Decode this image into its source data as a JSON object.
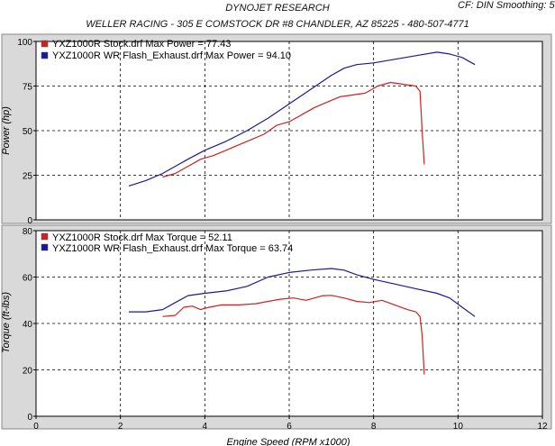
{
  "header": {
    "title": "DYNOJET RESEARCH",
    "subtitle": "WELLER RACING - 305 E COMSTOCK DR #8 CHANDLER, AZ 85225 - 480-507-4771",
    "settings": "CF: DIN  Smoothing: 5"
  },
  "colors": {
    "stock": "#cc2222",
    "flash": "#1a1a99",
    "panel": "#d9d9d9",
    "plot": "#ffffff"
  },
  "chart_data": [
    {
      "type": "line",
      "ylabel": "Power (hp)",
      "xlim": [
        0,
        12
      ],
      "ylim": [
        0,
        100
      ],
      "yticks": [
        0,
        25,
        50,
        75,
        100
      ],
      "xticks": [
        0,
        2,
        4,
        6,
        8,
        10,
        12
      ],
      "grid": true,
      "legend": "top-left",
      "series": [
        {
          "name": "YXZ1000R Stock.drf Max Power = 77.43",
          "color": "#cc2222",
          "points": [
            [
              3.0,
              24
            ],
            [
              3.3,
              26
            ],
            [
              3.6,
              30
            ],
            [
              3.9,
              34
            ],
            [
              4.2,
              36
            ],
            [
              4.5,
              39
            ],
            [
              4.8,
              42
            ],
            [
              5.1,
              45
            ],
            [
              5.4,
              48
            ],
            [
              5.7,
              53
            ],
            [
              6.0,
              55
            ],
            [
              6.3,
              59
            ],
            [
              6.6,
              63
            ],
            [
              6.9,
              66
            ],
            [
              7.2,
              69
            ],
            [
              7.5,
              70
            ],
            [
              7.8,
              71
            ],
            [
              8.1,
              75
            ],
            [
              8.4,
              77
            ],
            [
              8.7,
              76
            ],
            [
              9.0,
              75
            ],
            [
              9.1,
              72
            ],
            [
              9.15,
              50
            ],
            [
              9.2,
              31
            ]
          ]
        },
        {
          "name": "YXZ1000R WR Flash_Exhaust.drf Max Power = 94.10",
          "color": "#1a1a99",
          "points": [
            [
              2.2,
              19
            ],
            [
              2.6,
              22
            ],
            [
              3.0,
              26
            ],
            [
              3.3,
              30
            ],
            [
              3.6,
              34
            ],
            [
              4.0,
              39
            ],
            [
              4.5,
              44
            ],
            [
              5.0,
              50
            ],
            [
              5.5,
              57
            ],
            [
              6.0,
              65
            ],
            [
              6.5,
              73
            ],
            [
              7.0,
              81
            ],
            [
              7.3,
              85
            ],
            [
              7.6,
              87
            ],
            [
              8.0,
              88
            ],
            [
              8.5,
              90
            ],
            [
              9.0,
              92
            ],
            [
              9.5,
              94
            ],
            [
              9.8,
              93
            ],
            [
              10.1,
              91
            ],
            [
              10.4,
              87
            ]
          ]
        }
      ]
    },
    {
      "type": "line",
      "xlabel": "Engine Speed (RPM x1000)",
      "ylabel": "Torque (ft-lbs)",
      "xlim": [
        0,
        12
      ],
      "ylim": [
        0,
        80
      ],
      "yticks": [
        0,
        20,
        40,
        60,
        80
      ],
      "xticks": [
        0,
        2,
        4,
        6,
        8,
        10,
        12
      ],
      "grid": true,
      "legend": "top-left",
      "series": [
        {
          "name": "YXZ1000R Stock.drf Max Torque = 52.11",
          "color": "#cc2222",
          "points": [
            [
              3.0,
              43
            ],
            [
              3.3,
              43.5
            ],
            [
              3.5,
              47
            ],
            [
              3.7,
              47.5
            ],
            [
              3.9,
              46
            ],
            [
              4.1,
              47
            ],
            [
              4.4,
              48
            ],
            [
              4.8,
              48
            ],
            [
              5.2,
              48.5
            ],
            [
              5.5,
              49.5
            ],
            [
              5.8,
              50.5
            ],
            [
              6.1,
              51
            ],
            [
              6.4,
              50
            ],
            [
              6.6,
              51
            ],
            [
              6.8,
              52
            ],
            [
              7.0,
              52.1
            ],
            [
              7.3,
              51
            ],
            [
              7.6,
              49.5
            ],
            [
              7.9,
              49
            ],
            [
              8.2,
              50
            ],
            [
              8.5,
              48
            ],
            [
              8.8,
              46
            ],
            [
              9.0,
              45
            ],
            [
              9.1,
              43
            ],
            [
              9.15,
              35
            ],
            [
              9.2,
              18
            ]
          ]
        },
        {
          "name": "YXZ1000R WR Flash_Exhaust.drf Max Torque = 63.74",
          "color": "#1a1a99",
          "points": [
            [
              2.2,
              45
            ],
            [
              2.6,
              45
            ],
            [
              3.0,
              46
            ],
            [
              3.3,
              49
            ],
            [
              3.6,
              52
            ],
            [
              4.0,
              53
            ],
            [
              4.5,
              54
            ],
            [
              5.0,
              56
            ],
            [
              5.5,
              60
            ],
            [
              6.0,
              62
            ],
            [
              6.5,
              63
            ],
            [
              7.0,
              63.7
            ],
            [
              7.3,
              63
            ],
            [
              7.6,
              61
            ],
            [
              8.0,
              59
            ],
            [
              8.5,
              57
            ],
            [
              9.0,
              55
            ],
            [
              9.5,
              53
            ],
            [
              9.8,
              51
            ],
            [
              10.1,
              47
            ],
            [
              10.4,
              43
            ]
          ]
        }
      ]
    }
  ]
}
